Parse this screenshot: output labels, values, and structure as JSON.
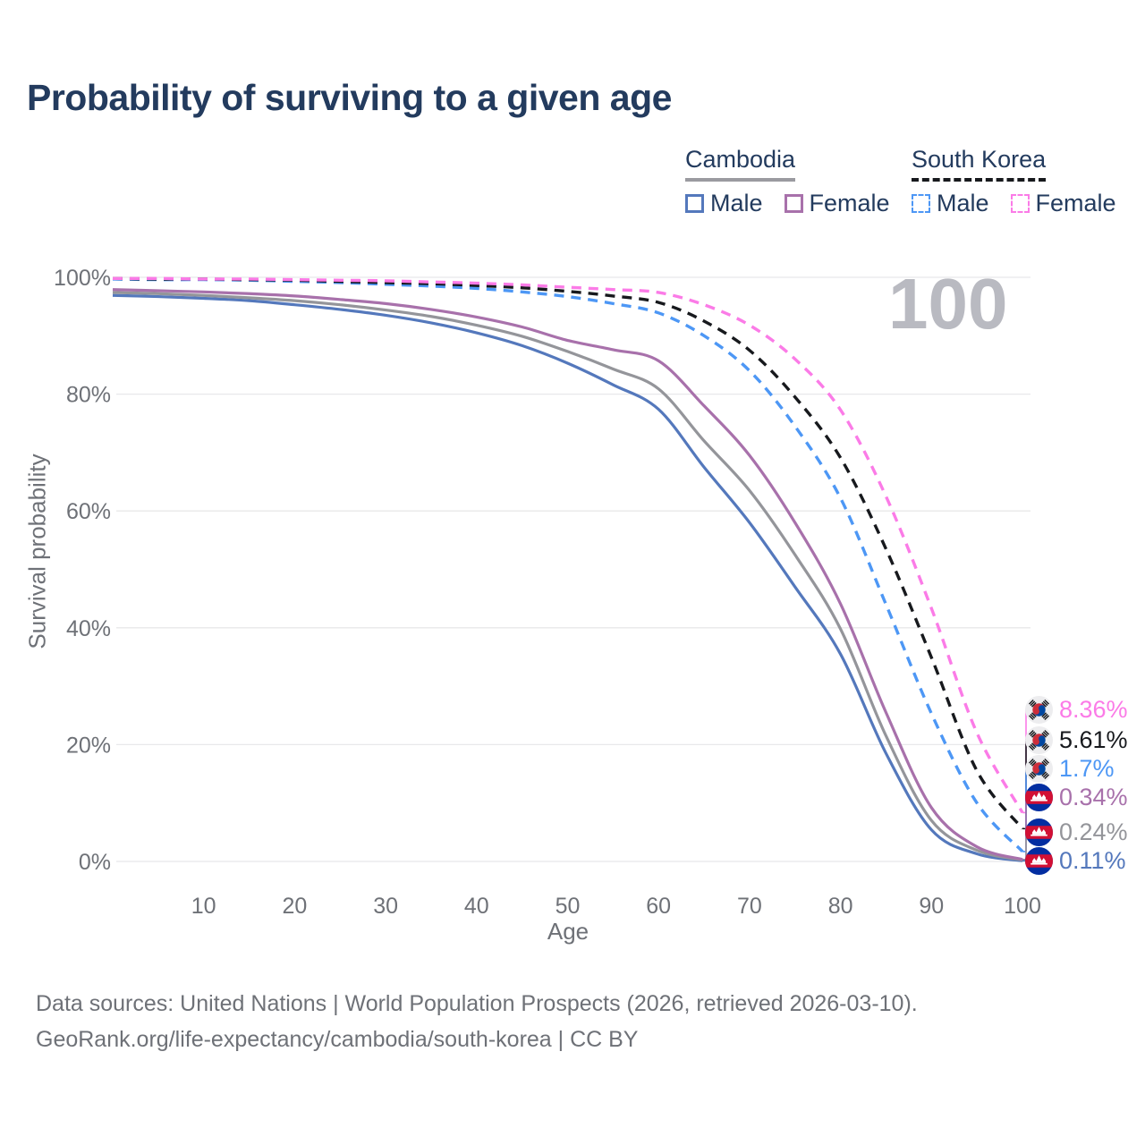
{
  "page": {
    "title": "Probability of surviving to a given age",
    "watermark_age": "100"
  },
  "legend": {
    "groups": [
      {
        "title": "Cambodia",
        "line_style": "solid",
        "underline_series": "cambodia_both",
        "items": [
          {
            "label": "Male",
            "series": "cambodia_male"
          },
          {
            "label": "Female",
            "series": "cambodia_female"
          }
        ]
      },
      {
        "title": "South Korea",
        "line_style": "dashed",
        "underline_series": "south_korea_both",
        "items": [
          {
            "label": "Male",
            "series": "south_korea_male"
          },
          {
            "label": "Female",
            "series": "south_korea_female"
          }
        ]
      }
    ]
  },
  "chart_data": {
    "type": "line",
    "title": "Probability of surviving to a given age",
    "xlabel": "Age",
    "ylabel": "Survival probability",
    "x_range": [
      0,
      100
    ],
    "y_range": [
      0,
      100
    ],
    "x_ticks": [
      10,
      20,
      30,
      40,
      50,
      60,
      70,
      80,
      90,
      100
    ],
    "y_tick_values": [
      0,
      20,
      40,
      60,
      80,
      100
    ],
    "y_tick_labels": [
      "0%",
      "20%",
      "40%",
      "60%",
      "80%",
      "100%"
    ],
    "grid": "horizontal",
    "legend_position": "top-right",
    "ages": [
      0,
      5,
      10,
      15,
      20,
      25,
      30,
      35,
      40,
      45,
      50,
      55,
      60,
      65,
      70,
      75,
      80,
      85,
      90,
      95,
      100
    ],
    "series": [
      {
        "id": "cambodia_male",
        "name": "Cambodia Male",
        "country": "Cambodia",
        "sex": "Male",
        "color": "#5478bc",
        "dash": false,
        "values": [
          96.9,
          96.7,
          96.4,
          96.0,
          95.3,
          94.5,
          93.5,
          92.2,
          90.5,
          88.3,
          85.3,
          81.6,
          77.4,
          67.5,
          58.0,
          47.0,
          35.5,
          18.5,
          5.4,
          1.3,
          0.11
        ]
      },
      {
        "id": "cambodia_both",
        "name": "Cambodia Both sexes",
        "country": "Cambodia",
        "sex": "Both",
        "color": "#94959a",
        "dash": false,
        "values": [
          97.4,
          97.2,
          96.9,
          96.5,
          96.0,
          95.3,
          94.4,
          93.3,
          91.8,
          89.9,
          87.3,
          84.3,
          80.9,
          72.0,
          63.5,
          52.5,
          39.8,
          21.5,
          7.0,
          1.9,
          0.24
        ]
      },
      {
        "id": "cambodia_female",
        "name": "Cambodia Female",
        "country": "Cambodia",
        "sex": "Female",
        "color": "#a871ab",
        "dash": false,
        "values": [
          97.9,
          97.7,
          97.5,
          97.2,
          96.8,
          96.2,
          95.5,
          94.5,
          93.2,
          91.5,
          89.2,
          87.6,
          85.7,
          78.0,
          69.5,
          58.0,
          44.1,
          25.5,
          9.2,
          2.5,
          0.34
        ]
      },
      {
        "id": "south_korea_male",
        "name": "South Korea Male",
        "country": "South Korea",
        "sex": "Male",
        "color": "#4d97f5",
        "dash": true,
        "values": [
          99.7,
          99.6,
          99.6,
          99.5,
          99.3,
          99.1,
          98.8,
          98.5,
          98.1,
          97.5,
          96.7,
          95.5,
          93.9,
          90.0,
          84.0,
          74.5,
          62.2,
          44.0,
          25.3,
          10.0,
          1.7
        ]
      },
      {
        "id": "south_korea_both",
        "name": "South Korea Both sexes",
        "country": "South Korea",
        "sex": "Both",
        "color": "#17191d",
        "dash": true,
        "values": [
          99.8,
          99.7,
          99.7,
          99.6,
          99.5,
          99.3,
          99.1,
          98.9,
          98.6,
          98.2,
          97.6,
          96.8,
          95.7,
          92.5,
          87.5,
          79.5,
          69.1,
          53.5,
          34.9,
          15.5,
          5.61
        ]
      },
      {
        "id": "south_korea_female",
        "name": "South Korea Female",
        "country": "South Korea",
        "sex": "Female",
        "color": "#fb7be7",
        "dash": true,
        "values": [
          99.8,
          99.8,
          99.7,
          99.7,
          99.6,
          99.5,
          99.4,
          99.2,
          99.0,
          98.7,
          98.3,
          97.9,
          97.4,
          95.3,
          91.8,
          86.0,
          77.3,
          62.5,
          43.3,
          22.0,
          8.36
        ]
      }
    ],
    "end_labels": [
      {
        "series": "south_korea_female",
        "flag": "south-korea-flag-icon",
        "value": "8.36%"
      },
      {
        "series": "south_korea_both",
        "flag": "south-korea-flag-icon",
        "value": "5.61%"
      },
      {
        "series": "south_korea_male",
        "flag": "south-korea-flag-icon",
        "value": "1.7%"
      },
      {
        "series": "cambodia_female",
        "flag": "cambodia-flag-icon",
        "value": "0.34%"
      },
      {
        "series": "cambodia_both",
        "flag": "cambodia-flag-icon",
        "value": "0.24%"
      },
      {
        "series": "cambodia_male",
        "flag": "cambodia-flag-icon",
        "value": "0.11%"
      }
    ]
  },
  "footer": {
    "line1": "Data sources: United Nations | World Population Prospects (2026, retrieved 2026-03-10).",
    "line2": "GeoRank.org/life-expectancy/cambodia/south-korea | CC BY"
  },
  "colors": {
    "title_text": "#233b5e",
    "axis_text": "#6e7177",
    "gridline": "#e8e8ea",
    "watermark": "#b9bac1",
    "cambodia_male": "#5478bc",
    "cambodia_female": "#a871ab",
    "cambodia_both": "#94959a",
    "south_korea_male": "#4d97f5",
    "south_korea_female": "#fb7be7",
    "south_korea_both": "#17191d"
  }
}
